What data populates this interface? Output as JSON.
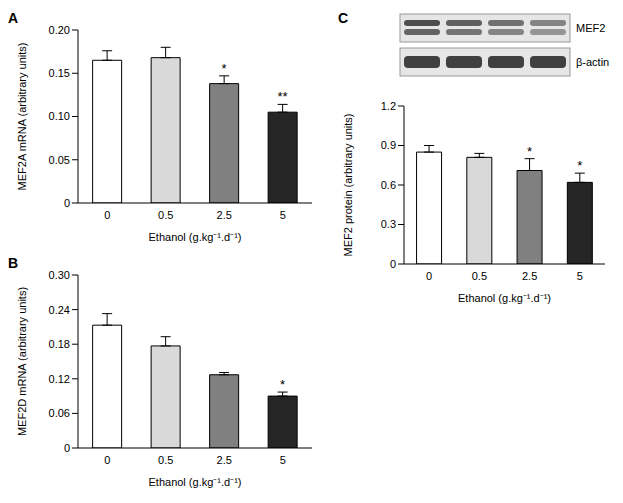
{
  "chart_data": [
    {
      "type": "bar",
      "panel": "A",
      "y_label": "MEF2A mRNA (arbitrary units)",
      "x_label": "Ethanol (g.kg⁻¹.d⁻¹)",
      "categories": [
        "0",
        "0.5",
        "2.5",
        "5"
      ],
      "values": [
        0.165,
        0.168,
        0.138,
        0.105
      ],
      "errors": [
        0.011,
        0.012,
        0.009,
        0.009
      ],
      "significance": [
        null,
        null,
        "*",
        "**"
      ],
      "colors": [
        "#ffffff",
        "#d9d9d9",
        "#808080",
        "#262626"
      ],
      "ylim": [
        0,
        0.2
      ],
      "yticks": [
        0,
        0.05,
        {
          "value": 0.1,
          "label": "0.10"
        },
        0.15,
        {
          "value": 0.2,
          "label": "0.20"
        }
      ]
    },
    {
      "type": "bar",
      "panel": "B",
      "y_label": "MEF2D mRNA (arbitrary units)",
      "x_label": "Ethanol (g.kg⁻¹.d⁻¹)",
      "categories": [
        "0",
        "0.5",
        "2.5",
        "5"
      ],
      "values": [
        0.213,
        0.177,
        0.127,
        0.09
      ],
      "errors": [
        0.02,
        0.016,
        0.004,
        0.007
      ],
      "significance": [
        null,
        null,
        null,
        "*"
      ],
      "colors": [
        "#ffffff",
        "#d9d9d9",
        "#808080",
        "#262626"
      ],
      "ylim": [
        0,
        0.3
      ],
      "yticks": [
        0,
        0.06,
        0.12,
        0.18,
        0.24,
        {
          "value": 0.3,
          "label": "0.30"
        }
      ]
    },
    {
      "type": "bar",
      "panel": "C",
      "y_label": "MEF2 protein (arbitrary units)",
      "x_label": "Ethanol (g.kg⁻¹.d⁻¹)",
      "categories": [
        "0",
        "0.5",
        "2.5",
        "5"
      ],
      "values": [
        0.85,
        0.81,
        0.71,
        0.62
      ],
      "errors": [
        0.05,
        0.03,
        0.09,
        0.07
      ],
      "significance": [
        null,
        null,
        "*",
        "*"
      ],
      "colors": [
        "#ffffff",
        "#d9d9d9",
        "#808080",
        "#262626"
      ],
      "ylim": [
        0,
        1.2
      ],
      "yticks": [
        0,
        0.3,
        0.6,
        0.9,
        1.2
      ],
      "blot": [
        "MEF2",
        "β-actin"
      ]
    }
  ]
}
